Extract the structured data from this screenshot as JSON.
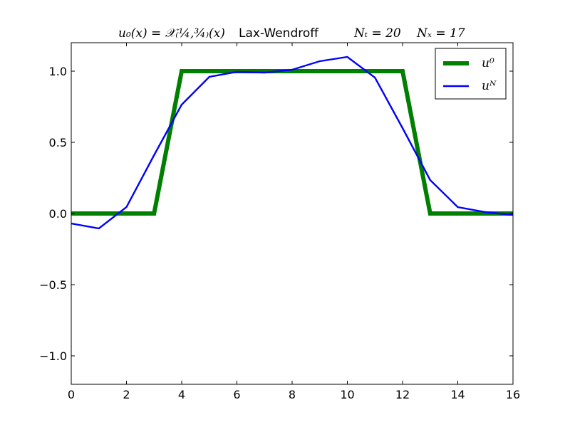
{
  "chart_data": {
    "type": "line",
    "title": {
      "formula": "u₀(x) = 𝒳₍¼,¾₎(x)",
      "method": "Lax-Wendroff",
      "nt": "Nₜ = 20",
      "nx": "Nₓ = 17"
    },
    "xlabel": "",
    "ylabel": "",
    "xlim": [
      0,
      16
    ],
    "ylim": [
      -1.2,
      1.2
    ],
    "xticks": [
      0,
      2,
      4,
      6,
      8,
      10,
      12,
      14,
      16
    ],
    "xtick_labels": [
      "0",
      "2",
      "4",
      "6",
      "8",
      "10",
      "12",
      "14",
      "16"
    ],
    "yticks": [
      -1.0,
      -0.5,
      0.0,
      0.5,
      1.0
    ],
    "ytick_labels": [
      "−1.0",
      "−0.5",
      "0.0",
      "0.5",
      "1.0"
    ],
    "grid": false,
    "legend_position": "top-right",
    "series": [
      {
        "name": "u⁰",
        "color": "#007f00",
        "line_width": "thick",
        "x": [
          0,
          1,
          2,
          3,
          4,
          5,
          6,
          7,
          8,
          9,
          10,
          11,
          12,
          13,
          14,
          15,
          16
        ],
        "values": [
          0,
          0,
          0,
          0,
          1,
          1,
          1,
          1,
          1,
          1,
          1,
          1,
          1,
          0,
          0,
          0,
          0
        ]
      },
      {
        "name": "uᴺ",
        "color": "#0000ff",
        "line_width": "thin",
        "x": [
          0,
          1,
          2,
          3,
          4,
          5,
          6,
          7,
          8,
          9,
          10,
          11,
          12,
          13,
          14,
          15,
          16
        ],
        "values": [
          -0.07,
          -0.105,
          0.045,
          0.41,
          0.765,
          0.96,
          0.995,
          0.99,
          1.01,
          1.07,
          1.1,
          0.955,
          0.6,
          0.235,
          0.045,
          0.01,
          -0.01
        ]
      }
    ]
  }
}
